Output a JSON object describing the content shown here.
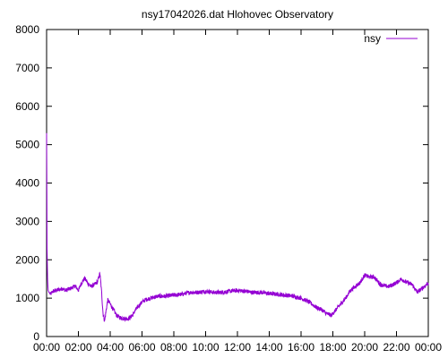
{
  "chart_data": {
    "type": "line",
    "title": "nsy17042026.dat Hlohovec Observatory",
    "xlabel": "",
    "ylabel": "",
    "xlim": [
      0,
      24
    ],
    "ylim": [
      0,
      8000
    ],
    "x_ticks": [
      "00:00",
      "02:00",
      "04:00",
      "06:00",
      "08:00",
      "10:00",
      "12:00",
      "14:00",
      "16:00",
      "18:00",
      "20:00",
      "22:00",
      "00:00"
    ],
    "y_ticks": [
      "0",
      "1000",
      "2000",
      "3000",
      "4000",
      "5000",
      "6000",
      "7000",
      "8000"
    ],
    "legend": {
      "position": "top-right"
    },
    "grid": false,
    "series": [
      {
        "name": "nsy",
        "color": "#9400d3",
        "x": [
          0.0,
          0.03,
          0.06,
          0.1,
          0.15,
          0.25,
          0.4,
          0.6,
          0.8,
          1.0,
          1.2,
          1.5,
          1.8,
          2.0,
          2.2,
          2.4,
          2.6,
          2.8,
          3.0,
          3.2,
          3.35,
          3.45,
          3.55,
          3.65,
          3.75,
          3.85,
          4.0,
          4.2,
          4.4,
          4.6,
          4.8,
          5.0,
          5.2,
          5.4,
          5.6,
          5.8,
          6.0,
          6.2,
          6.5,
          7.0,
          7.5,
          8.0,
          8.5,
          9.0,
          9.5,
          10.0,
          10.5,
          11.0,
          11.5,
          12.0,
          12.5,
          13.0,
          13.5,
          14.0,
          14.5,
          15.0,
          15.5,
          16.0,
          16.5,
          17.0,
          17.3,
          17.6,
          17.9,
          18.2,
          18.5,
          18.8,
          19.1,
          19.4,
          19.7,
          20.0,
          20.3,
          20.6,
          21.0,
          21.5,
          22.0,
          22.3,
          22.6,
          23.0,
          23.3,
          23.6,
          24.0
        ],
        "y": [
          5300,
          2300,
          1500,
          1200,
          1150,
          1100,
          1180,
          1200,
          1220,
          1250,
          1200,
          1250,
          1320,
          1200,
          1400,
          1520,
          1380,
          1300,
          1350,
          1420,
          1650,
          1200,
          600,
          400,
          700,
          950,
          850,
          700,
          550,
          500,
          480,
          460,
          480,
          550,
          700,
          800,
          900,
          950,
          1000,
          1050,
          1050,
          1080,
          1100,
          1150,
          1150,
          1180,
          1150,
          1150,
          1180,
          1200,
          1180,
          1150,
          1150,
          1120,
          1100,
          1080,
          1050,
          1000,
          900,
          750,
          700,
          600,
          550,
          700,
          850,
          1000,
          1200,
          1300,
          1400,
          1600,
          1550,
          1550,
          1350,
          1300,
          1400,
          1500,
          1420,
          1350,
          1150,
          1250,
          1400
        ]
      }
    ]
  }
}
